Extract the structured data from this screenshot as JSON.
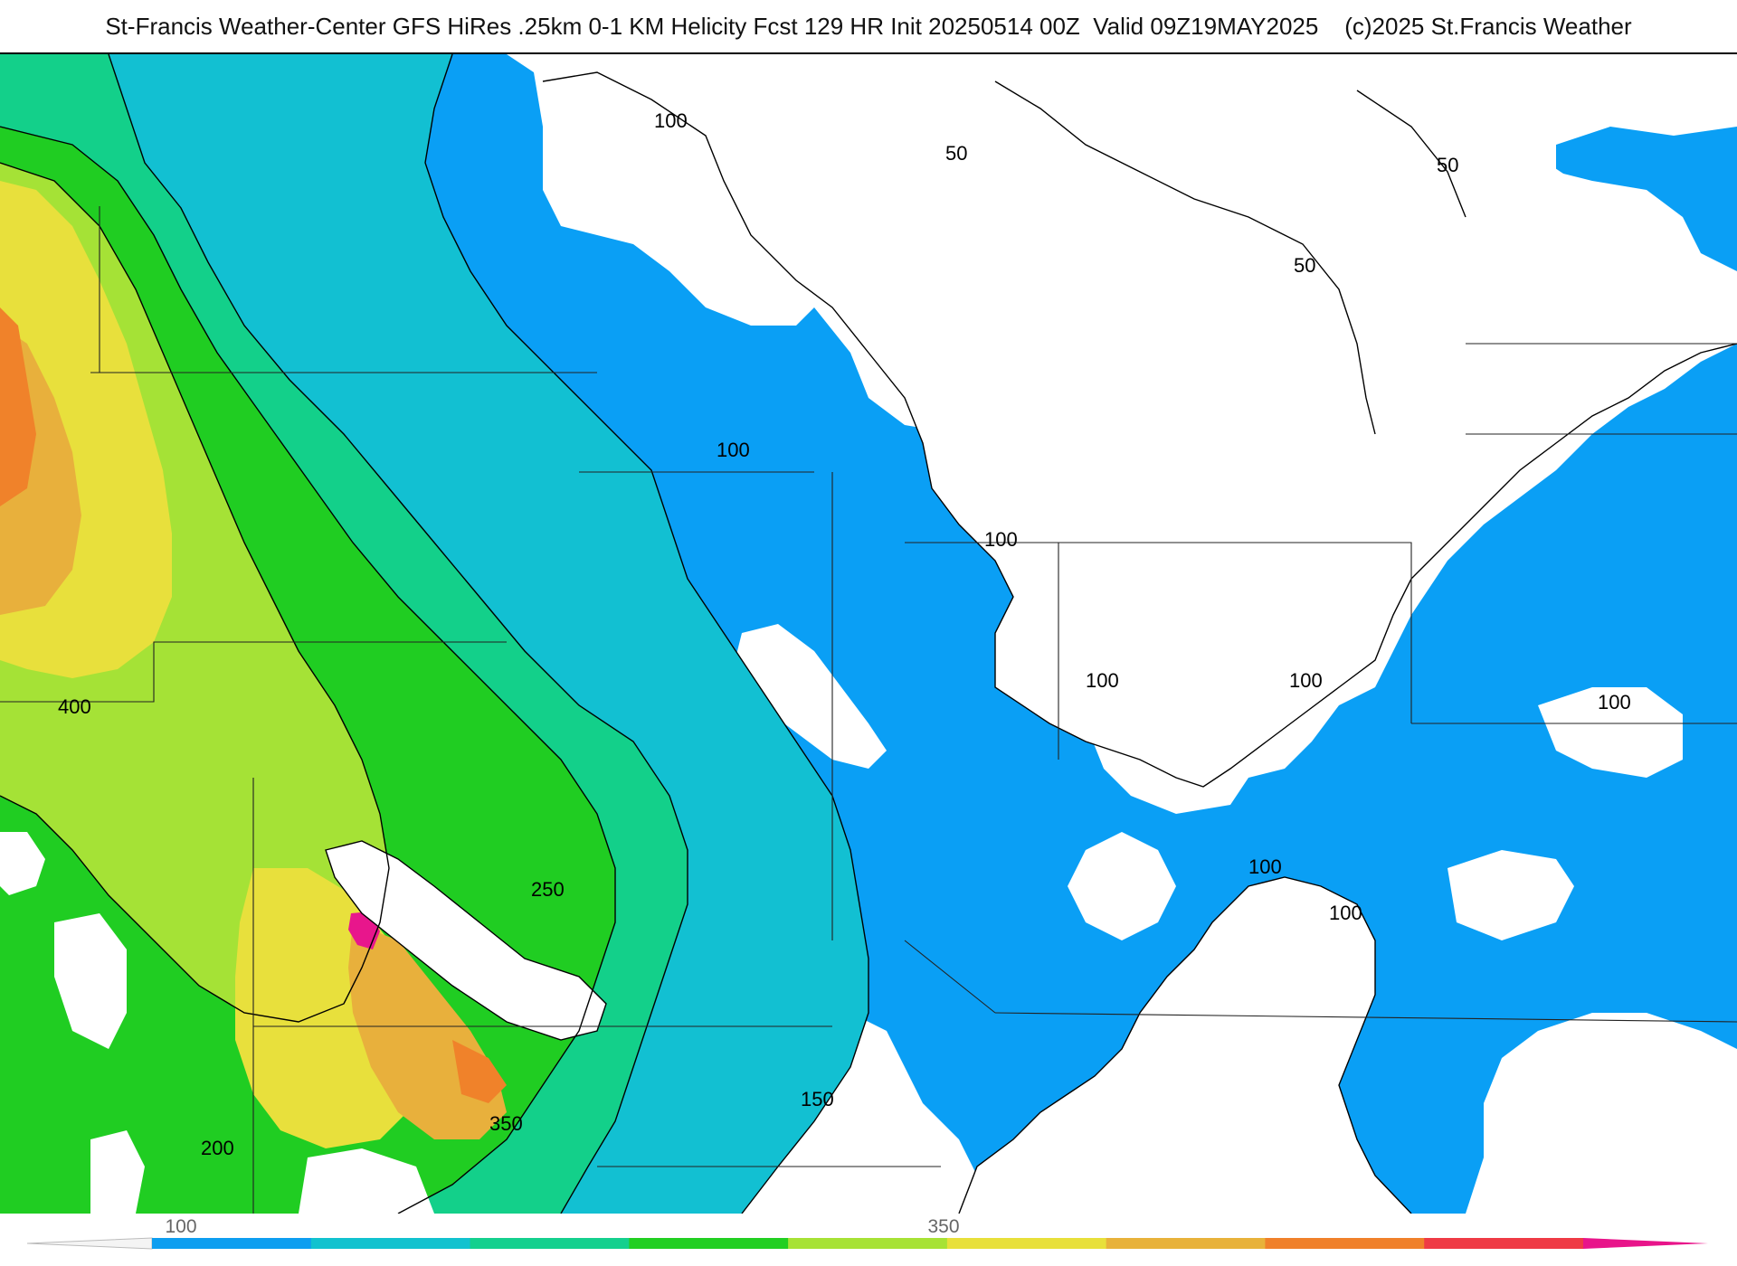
{
  "title": "St-Francis Weather-Center GFS HiRes .25km 0-1 KM Helicity Fcst 129 HR Init 20250514 00Z  Valid 09Z19MAY2025    (c)2025 St.Francis Weather",
  "contour_labels": [
    "100",
    "50",
    "50",
    "50",
    "100",
    "100",
    "100",
    "100",
    "100",
    "100",
    "100",
    "400",
    "250",
    "350",
    "200",
    "150"
  ],
  "colorbar": {
    "tick_labels": [
      "100",
      "350"
    ],
    "colors": [
      "#0d9ef0",
      "#11c2cf",
      "#14d08e",
      "#22cf22",
      "#a7e235",
      "#e8e03a",
      "#e8b23a",
      "#f0802a",
      "#ef3a45",
      "#e8148a"
    ]
  },
  "colors": {
    "land_white": "#ffffff",
    "level_50_100": "#0a9ff5",
    "level_100_150": "#12c0d2",
    "level_150_200": "#13d08a",
    "level_200_250": "#20cd22",
    "level_250_300": "#a5e236",
    "level_300_350": "#e8e03c",
    "level_350_400": "#e8b03c",
    "level_400_450": "#f0822a",
    "level_max": "#e8168c"
  }
}
